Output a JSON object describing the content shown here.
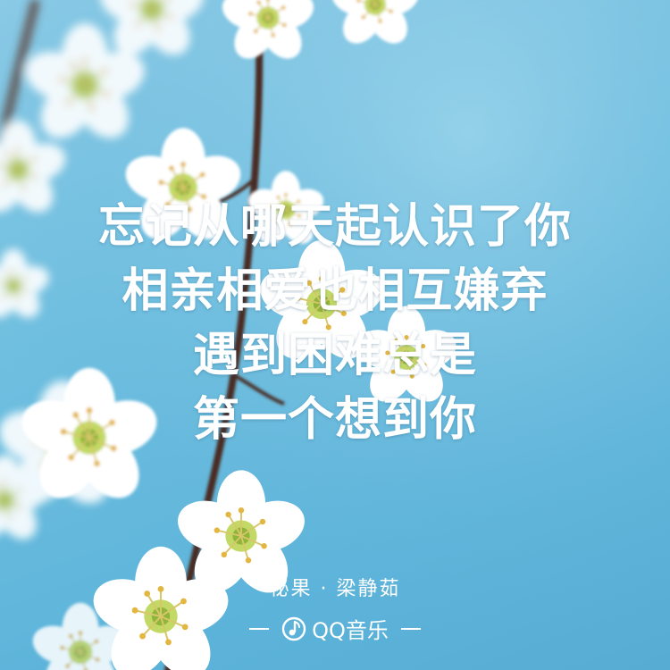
{
  "lyrics": {
    "line1": "忘记从哪天起认识了你",
    "line2": "相亲相爱也相互嫌弃",
    "line3": "遇到困难总是",
    "line4": "第一个想到你"
  },
  "credit": {
    "text": "秘果 · 梁静茹"
  },
  "brand": {
    "name": "QQ音乐",
    "icon": "qq-music-note-icon"
  },
  "colors": {
    "sky": "#6fbfe0",
    "text": "#ffffff",
    "petal": "#ffffff",
    "branch": "#4a2c24",
    "stamen": "#c9d84a"
  }
}
